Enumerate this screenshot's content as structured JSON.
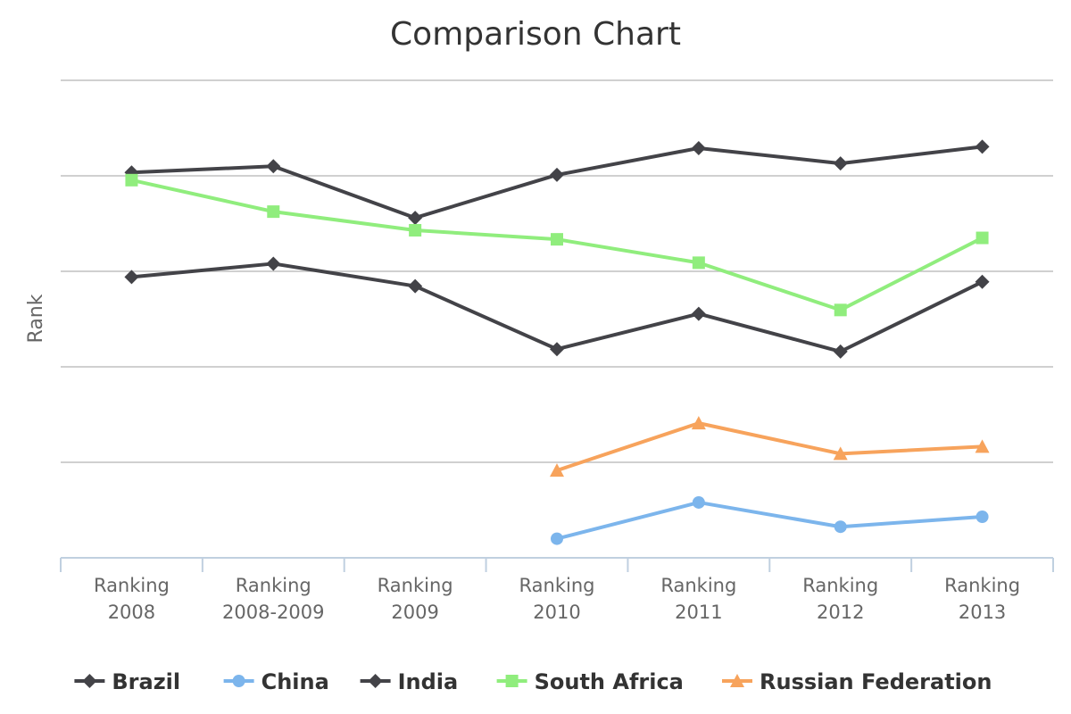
{
  "chart_data": {
    "type": "line",
    "title": "Comparison Chart",
    "ylabel": "Rank",
    "xlabel": "",
    "categories": [
      [
        "Ranking",
        "2008"
      ],
      [
        "Ranking",
        "2008-2009"
      ],
      [
        "Ranking",
        "2009"
      ],
      [
        "Ranking",
        "2010"
      ],
      [
        "Ranking",
        "2011"
      ],
      [
        "Ranking",
        "2012"
      ],
      [
        "Ranking",
        "2013"
      ]
    ],
    "ylim": [
      0,
      100
    ],
    "yaxis_reversed": false,
    "grid": true,
    "legend_position": "bottom",
    "series": [
      {
        "name": "Brazil",
        "color": "#434348",
        "marker": "diamond",
        "values": [
          58.8,
          61.6,
          56.9,
          43.7,
          51.1,
          43.2,
          57.8
        ]
      },
      {
        "name": "China",
        "color": "#7cb5ec",
        "marker": "circle",
        "values": [
          null,
          null,
          null,
          4.0,
          11.6,
          6.5,
          8.6
        ]
      },
      {
        "name": "India",
        "color": "#434348",
        "marker": "diamond",
        "values": [
          80.7,
          82.0,
          71.2,
          80.2,
          85.8,
          82.6,
          86.1
        ]
      },
      {
        "name": "South Africa",
        "color": "#90ed7d",
        "marker": "square",
        "values": [
          79.1,
          72.5,
          68.6,
          66.7,
          61.8,
          51.9,
          67.0
        ]
      },
      {
        "name": "Russian Federation",
        "color": "#f7a35c",
        "marker": "triangle",
        "values": [
          null,
          null,
          null,
          18.3,
          28.2,
          21.8,
          23.3
        ]
      }
    ]
  }
}
